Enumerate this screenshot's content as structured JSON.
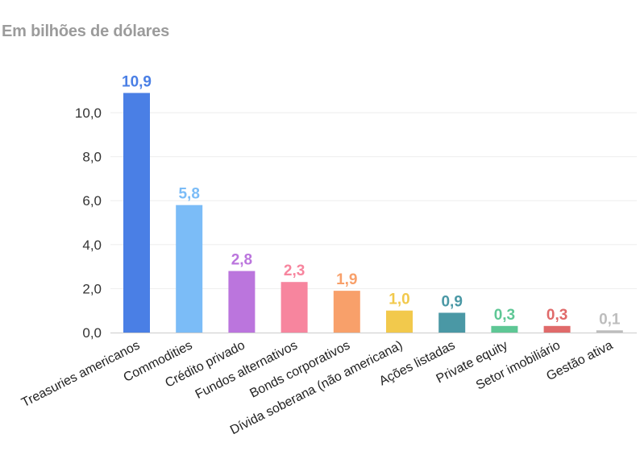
{
  "chart_data": {
    "type": "bar",
    "title": "Em bilhões de dólares",
    "xlabel": "",
    "ylabel": "",
    "ylim": [
      0,
      11
    ],
    "yticks": [
      "0,0",
      "2,0",
      "4,0",
      "6,0",
      "8,0",
      "10,0"
    ],
    "ytick_values": [
      0,
      2,
      4,
      6,
      8,
      10
    ],
    "grid": true,
    "legend": "none",
    "categories": [
      "Treasuries americanos",
      "Commodities",
      "Crédito privado",
      "Fundos alternativos",
      "Bonds corporativos",
      "Dívida soberana (não americana)",
      "Ações listadas",
      "Private equity",
      "Setor imobiliário",
      "Gestão ativa"
    ],
    "values": [
      10.9,
      5.8,
      2.8,
      2.3,
      1.9,
      1.0,
      0.9,
      0.3,
      0.3,
      0.1
    ],
    "value_labels": [
      "10,9",
      "5,8",
      "2,8",
      "2,3",
      "1,9",
      "1,0",
      "0,9",
      "0,3",
      "0,3",
      "0,1"
    ],
    "colors": [
      "#4a7fe5",
      "#7bbcf7",
      "#bb75dd",
      "#f7859e",
      "#f8a06a",
      "#f2c94c",
      "#4a98a5",
      "#5ec795",
      "#e06a6a",
      "#bdbdbd"
    ],
    "gridline_color": "#eeeeee",
    "axis_color": "#cccccc"
  }
}
